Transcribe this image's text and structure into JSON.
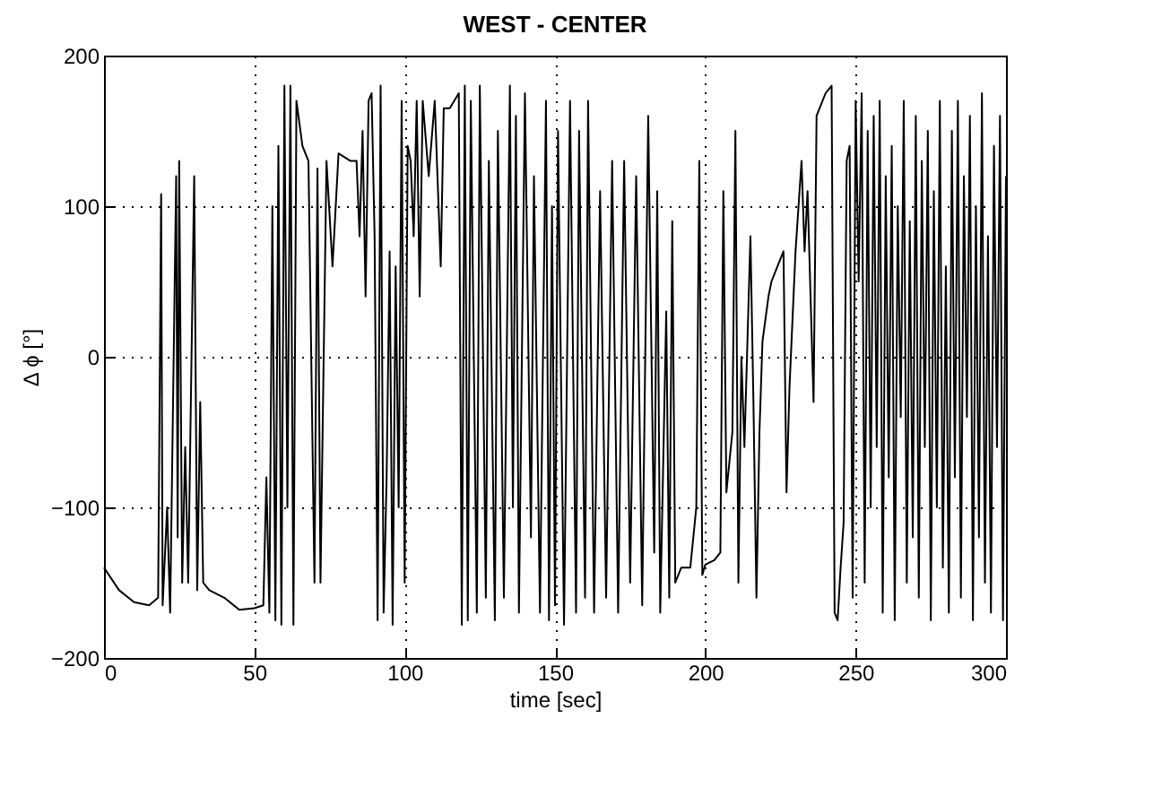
{
  "chart_data": {
    "type": "line",
    "title": "WEST - CENTER",
    "xlabel": "time [sec]",
    "ylabel": "Δ ϕ [°]",
    "xlim": [
      0,
      300
    ],
    "ylim": [
      -200,
      200
    ],
    "xticks": [
      0,
      50,
      100,
      150,
      200,
      250,
      300
    ],
    "yticks": [
      -200,
      -100,
      0,
      100,
      200
    ],
    "grid": true,
    "line_style": "solid",
    "series": [
      {
        "color": "#000000",
        "x": [
          0,
          5,
          10,
          15,
          18,
          19,
          19.5,
          21,
          22,
          24,
          24.5,
          25,
          26,
          27,
          28,
          30,
          31,
          32,
          33,
          35,
          40,
          45,
          50,
          53,
          54,
          55,
          56,
          57,
          58,
          59,
          60,
          61,
          62,
          63,
          64,
          66,
          68,
          70,
          71,
          72,
          74,
          76,
          78,
          82,
          84,
          85,
          86,
          87,
          88,
          89,
          90,
          91,
          92,
          93,
          94,
          95,
          96,
          97,
          98,
          99,
          100,
          101,
          102,
          103,
          104,
          105,
          106,
          108,
          110,
          112,
          113,
          115,
          118,
          119,
          120,
          121,
          122,
          124,
          125,
          127,
          128,
          130,
          131,
          133,
          135,
          136,
          137,
          138,
          140,
          142,
          143,
          145,
          147,
          148,
          149,
          150,
          151,
          153,
          155,
          157,
          158,
          160,
          161,
          163,
          165,
          167,
          169,
          171,
          173,
          175,
          177,
          179,
          181,
          183,
          184,
          185,
          187,
          188,
          189,
          190,
          192,
          195,
          197,
          198,
          199,
          200,
          203,
          205,
          206,
          207,
          209,
          210,
          211,
          212,
          213,
          215,
          216,
          217,
          218,
          219,
          221,
          222,
          224,
          226,
          227,
          228,
          230,
          232,
          233,
          234,
          236,
          237,
          240,
          242,
          243,
          244,
          245,
          246,
          247,
          248,
          249,
          250,
          251,
          252,
          253,
          254,
          255,
          256,
          257,
          258,
          259,
          260,
          261,
          262,
          263,
          264,
          265,
          266,
          267,
          268,
          269,
          270,
          271,
          272,
          273,
          274,
          275,
          276,
          277,
          278,
          279,
          280,
          281,
          282,
          283,
          284,
          285,
          286,
          287,
          288,
          289,
          290,
          291,
          292,
          293,
          294,
          295,
          296,
          297,
          298,
          299,
          300
        ],
        "values": [
          -140,
          -155,
          -163,
          -165,
          -160,
          108,
          -165,
          -100,
          -170,
          120,
          -120,
          130,
          -150,
          -60,
          -150,
          120,
          -155,
          -30,
          -150,
          -155,
          -160,
          -168,
          -167,
          -165,
          -80,
          -170,
          100,
          -175,
          140,
          -178,
          180,
          -100,
          180,
          -178,
          170,
          140,
          130,
          -150,
          125,
          -150,
          130,
          60,
          135,
          130,
          130,
          80,
          150,
          40,
          170,
          175,
          80,
          -175,
          180,
          -170,
          -80,
          70,
          -178,
          60,
          -100,
          170,
          -150,
          140,
          130,
          80,
          170,
          40,
          170,
          120,
          170,
          60,
          165,
          165,
          175,
          -178,
          180,
          -175,
          170,
          -170,
          180,
          -160,
          130,
          -175,
          150,
          -160,
          180,
          -100,
          160,
          -170,
          175,
          -120,
          120,
          -170,
          170,
          -175,
          100,
          -165,
          150,
          -178,
          170,
          -170,
          150,
          -160,
          170,
          -170,
          110,
          -160,
          130,
          -170,
          130,
          -150,
          120,
          -165,
          160,
          -130,
          110,
          -170,
          30,
          -160,
          90,
          -150,
          -140,
          -140,
          -100,
          130,
          -145,
          -138,
          -135,
          -130,
          110,
          -90,
          -50,
          150,
          -150,
          0,
          -60,
          80,
          -30,
          -160,
          -50,
          10,
          40,
          50,
          60,
          70,
          -90,
          -20,
          70,
          130,
          70,
          110,
          -30,
          160,
          175,
          180,
          -170,
          -175,
          -140,
          -110,
          130,
          140,
          -160,
          170,
          50,
          175,
          -150,
          150,
          -100,
          160,
          -60,
          170,
          -170,
          120,
          -80,
          140,
          -175,
          100,
          -40,
          170,
          -150,
          90,
          -120,
          160,
          -160,
          130,
          -60,
          150,
          -175,
          110,
          -100,
          170,
          -140,
          60,
          -170,
          150,
          -80,
          170,
          -160,
          120,
          -40,
          160,
          -175,
          100,
          -120,
          175,
          -150,
          80,
          -170,
          140,
          -60,
          160,
          -175,
          120
        ]
      }
    ]
  }
}
